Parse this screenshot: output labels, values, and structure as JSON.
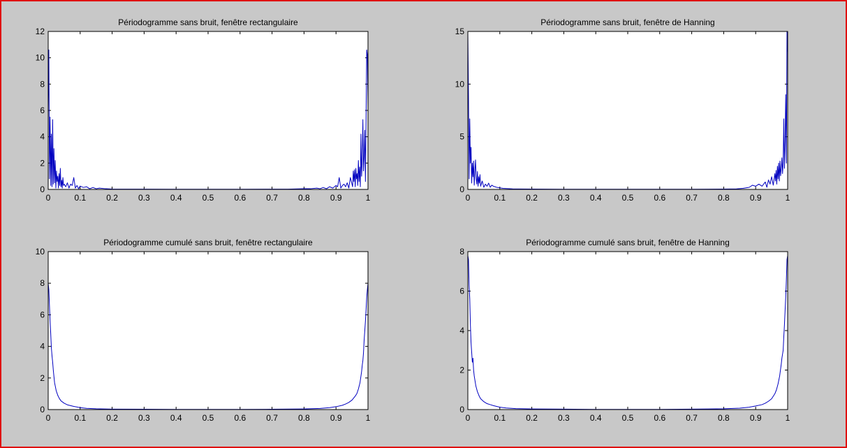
{
  "figure": {
    "background": "#c8c8c8",
    "border_color": "#e01010",
    "line_color": "#0000c0"
  },
  "chart_data": [
    {
      "type": "line",
      "title": "Périodogramme sans bruit, fenêtre rectangulaire",
      "xlabel": "",
      "ylabel": "",
      "xlim": [
        0,
        1
      ],
      "ylim": [
        0,
        12
      ],
      "xticks": [
        0,
        0.1,
        0.2,
        0.3,
        0.4,
        0.5,
        0.6,
        0.7,
        0.8,
        0.9,
        1
      ],
      "xtick_labels": [
        "0",
        "0.1",
        "0.2",
        "0.3",
        "0.4",
        "0.5",
        "0.6",
        "0.7",
        "0.8",
        "0.9",
        "1"
      ],
      "yticks": [
        0,
        2,
        4,
        6,
        8,
        10,
        12
      ],
      "ytick_labels": [
        "0",
        "2",
        "4",
        "6",
        "8",
        "10",
        "12"
      ],
      "grid": false,
      "series": [
        {
          "x": [
            0,
            0.002,
            0.004,
            0.006,
            0.008,
            0.01,
            0.012,
            0.014,
            0.016,
            0.018,
            0.02,
            0.022,
            0.024,
            0.026,
            0.028,
            0.03,
            0.032,
            0.034,
            0.036,
            0.038,
            0.04,
            0.042,
            0.044,
            0.046,
            0.048,
            0.05,
            0.055,
            0.06,
            0.065,
            0.07,
            0.075,
            0.08,
            0.085,
            0.09,
            0.095,
            0.1,
            0.11,
            0.12,
            0.13,
            0.14,
            0.15,
            0.16,
            0.18,
            0.2,
            0.25,
            0.3,
            0.4,
            0.5,
            0.6,
            0.7,
            0.75,
            0.8,
            0.82,
            0.84,
            0.85,
            0.86,
            0.87,
            0.88,
            0.89,
            0.9,
            0.905,
            0.91,
            0.915,
            0.92,
            0.925,
            0.93,
            0.935,
            0.94,
            0.945,
            0.95,
            0.952,
            0.954,
            0.956,
            0.958,
            0.96,
            0.962,
            0.964,
            0.966,
            0.968,
            0.97,
            0.972,
            0.974,
            0.976,
            0.978,
            0.98,
            0.982,
            0.984,
            0.986,
            0.988,
            0.99,
            0.992,
            0.994,
            0.996,
            0.998,
            1
          ],
          "y": [
            6.0,
            10.6,
            0.8,
            5.5,
            0.3,
            4.2,
            0.2,
            5.3,
            0.4,
            3.1,
            0.5,
            2.2,
            0.1,
            1.4,
            0.6,
            1.0,
            0.1,
            1.2,
            0.3,
            1.6,
            0.2,
            0.7,
            0.1,
            0.9,
            0.3,
            0.4,
            0.2,
            0.5,
            0.1,
            0.4,
            0.3,
            0.9,
            0.1,
            0.3,
            0.05,
            0.25,
            0.15,
            0.2,
            0.05,
            0.15,
            0.05,
            0.1,
            0.05,
            0.03,
            0.02,
            0.02,
            0.01,
            0.01,
            0.01,
            0.02,
            0.02,
            0.05,
            0.05,
            0.1,
            0.05,
            0.15,
            0.05,
            0.2,
            0.1,
            0.3,
            0.2,
            0.9,
            0.1,
            0.3,
            0.4,
            0.2,
            0.5,
            0.1,
            0.9,
            0.4,
            0.2,
            1.4,
            0.6,
            1.5,
            0.2,
            1.6,
            0.8,
            1.2,
            0.3,
            2.2,
            0.6,
            1.7,
            0.2,
            4.2,
            1.0,
            2.1,
            5.3,
            1.4,
            2.5,
            4.5,
            0.6,
            5.5,
            10.6,
            10.2,
            6.2
          ]
        }
      ]
    },
    {
      "type": "line",
      "title": "Périodogramme sans bruit, fenêtre de Hanning",
      "xlabel": "",
      "ylabel": "",
      "xlim": [
        0,
        1
      ],
      "ylim": [
        0,
        15
      ],
      "xticks": [
        0,
        0.1,
        0.2,
        0.3,
        0.4,
        0.5,
        0.6,
        0.7,
        0.8,
        0.9,
        1
      ],
      "xtick_labels": [
        "0",
        "0.1",
        "0.2",
        "0.3",
        "0.4",
        "0.5",
        "0.6",
        "0.7",
        "0.8",
        "0.9",
        "1"
      ],
      "yticks": [
        0,
        5,
        10,
        15
      ],
      "ytick_labels": [
        "0",
        "5",
        "10",
        "15"
      ],
      "grid": false,
      "series": [
        {
          "x": [
            0,
            0.002,
            0.004,
            0.006,
            0.008,
            0.01,
            0.012,
            0.014,
            0.016,
            0.018,
            0.02,
            0.022,
            0.024,
            0.026,
            0.028,
            0.03,
            0.032,
            0.034,
            0.036,
            0.038,
            0.04,
            0.045,
            0.05,
            0.055,
            0.06,
            0.065,
            0.07,
            0.075,
            0.08,
            0.09,
            0.1,
            0.11,
            0.12,
            0.14,
            0.16,
            0.2,
            0.3,
            0.4,
            0.5,
            0.6,
            0.7,
            0.8,
            0.84,
            0.86,
            0.88,
            0.89,
            0.9,
            0.91,
            0.92,
            0.93,
            0.935,
            0.94,
            0.945,
            0.95,
            0.955,
            0.96,
            0.962,
            0.964,
            0.966,
            0.968,
            0.97,
            0.972,
            0.974,
            0.976,
            0.978,
            0.98,
            0.982,
            0.984,
            0.986,
            0.988,
            0.99,
            0.992,
            0.994,
            0.996,
            0.998,
            1
          ],
          "y": [
            15.0,
            9.0,
            1.0,
            6.7,
            2.5,
            4.0,
            0.6,
            2.5,
            1.2,
            2.7,
            0.4,
            1.8,
            2.8,
            1.0,
            0.5,
            1.7,
            0.3,
            1.2,
            0.6,
            1.4,
            0.3,
            0.8,
            0.2,
            0.5,
            0.3,
            0.6,
            0.2,
            0.4,
            0.3,
            0.2,
            0.15,
            0.1,
            0.08,
            0.05,
            0.04,
            0.03,
            0.02,
            0.02,
            0.02,
            0.02,
            0.02,
            0.03,
            0.05,
            0.1,
            0.2,
            0.4,
            0.3,
            0.5,
            0.3,
            0.7,
            0.2,
            0.9,
            0.5,
            1.2,
            0.4,
            1.5,
            0.8,
            1.8,
            0.5,
            2.2,
            1.0,
            2.5,
            0.8,
            2.7,
            1.3,
            2.0,
            3.0,
            1.5,
            2.6,
            6.7,
            2.0,
            4.5,
            9.0,
            2.5,
            15.0,
            13.0
          ]
        }
      ]
    },
    {
      "type": "line",
      "title": "Périodogramme cumulé sans bruit, fenêtre rectangulaire",
      "xlabel": "",
      "ylabel": "",
      "xlim": [
        0,
        1
      ],
      "ylim": [
        0,
        10
      ],
      "xticks": [
        0,
        0.1,
        0.2,
        0.3,
        0.4,
        0.5,
        0.6,
        0.7,
        0.8,
        0.9,
        1
      ],
      "xtick_labels": [
        "0",
        "0.1",
        "0.2",
        "0.3",
        "0.4",
        "0.5",
        "0.6",
        "0.7",
        "0.8",
        "0.9",
        "1"
      ],
      "yticks": [
        0,
        2,
        4,
        6,
        8,
        10
      ],
      "ytick_labels": [
        "0",
        "2",
        "4",
        "6",
        "8",
        "10"
      ],
      "grid": false,
      "series": [
        {
          "x": [
            0,
            0.002,
            0.004,
            0.006,
            0.008,
            0.01,
            0.012,
            0.014,
            0.016,
            0.018,
            0.02,
            0.025,
            0.03,
            0.035,
            0.04,
            0.05,
            0.06,
            0.07,
            0.08,
            0.1,
            0.12,
            0.15,
            0.2,
            0.3,
            0.4,
            0.5,
            0.6,
            0.7,
            0.8,
            0.85,
            0.88,
            0.9,
            0.92,
            0.93,
            0.94,
            0.95,
            0.96,
            0.965,
            0.97,
            0.975,
            0.98,
            0.982,
            0.984,
            0.986,
            0.988,
            0.99,
            0.992,
            0.994,
            0.996,
            0.998,
            1
          ],
          "y": [
            8.0,
            7.6,
            6.6,
            5.6,
            4.8,
            3.9,
            3.4,
            3.0,
            2.5,
            2.1,
            1.7,
            1.2,
            0.9,
            0.7,
            0.55,
            0.4,
            0.3,
            0.25,
            0.2,
            0.12,
            0.08,
            0.05,
            0.03,
            0.02,
            0.01,
            0.01,
            0.01,
            0.02,
            0.04,
            0.07,
            0.12,
            0.18,
            0.27,
            0.35,
            0.45,
            0.6,
            0.85,
            1.0,
            1.3,
            1.7,
            2.4,
            2.8,
            3.1,
            3.6,
            4.4,
            5.0,
            5.6,
            6.3,
            7.1,
            7.6,
            8.0
          ]
        }
      ]
    },
    {
      "type": "line",
      "title": "Périodogramme cumulé sans bruit, fenêtre de Hanning",
      "xlabel": "",
      "ylabel": "",
      "xlim": [
        0,
        1
      ],
      "ylim": [
        0,
        8
      ],
      "xticks": [
        0,
        0.1,
        0.2,
        0.3,
        0.4,
        0.5,
        0.6,
        0.7,
        0.8,
        0.9,
        1
      ],
      "xtick_labels": [
        "0",
        "0.1",
        "0.2",
        "0.3",
        "0.4",
        "0.5",
        "0.6",
        "0.7",
        "0.8",
        "0.9",
        "1"
      ],
      "yticks": [
        0,
        2,
        4,
        6,
        8
      ],
      "ytick_labels": [
        "0",
        "2",
        "4",
        "6",
        "8"
      ],
      "grid": false,
      "series": [
        {
          "x": [
            0,
            0.002,
            0.004,
            0.006,
            0.008,
            0.01,
            0.012,
            0.014,
            0.016,
            0.018,
            0.02,
            0.025,
            0.03,
            0.035,
            0.04,
            0.05,
            0.06,
            0.07,
            0.08,
            0.1,
            0.12,
            0.15,
            0.2,
            0.3,
            0.4,
            0.5,
            0.6,
            0.7,
            0.8,
            0.85,
            0.88,
            0.9,
            0.92,
            0.93,
            0.94,
            0.95,
            0.96,
            0.965,
            0.97,
            0.975,
            0.98,
            0.982,
            0.984,
            0.986,
            0.988,
            0.99,
            0.992,
            0.994,
            0.996,
            0.998,
            1
          ],
          "y": [
            7.8,
            7.6,
            6.3,
            5.6,
            4.3,
            3.4,
            2.9,
            2.4,
            2.6,
            2.0,
            1.7,
            1.2,
            0.9,
            0.7,
            0.55,
            0.4,
            0.3,
            0.25,
            0.2,
            0.12,
            0.08,
            0.05,
            0.03,
            0.02,
            0.01,
            0.01,
            0.01,
            0.02,
            0.04,
            0.07,
            0.12,
            0.18,
            0.25,
            0.32,
            0.42,
            0.55,
            0.8,
            1.0,
            1.3,
            1.7,
            2.3,
            2.6,
            2.8,
            3.0,
            3.7,
            4.3,
            5.0,
            5.7,
            6.6,
            7.6,
            7.8
          ]
        }
      ]
    }
  ]
}
